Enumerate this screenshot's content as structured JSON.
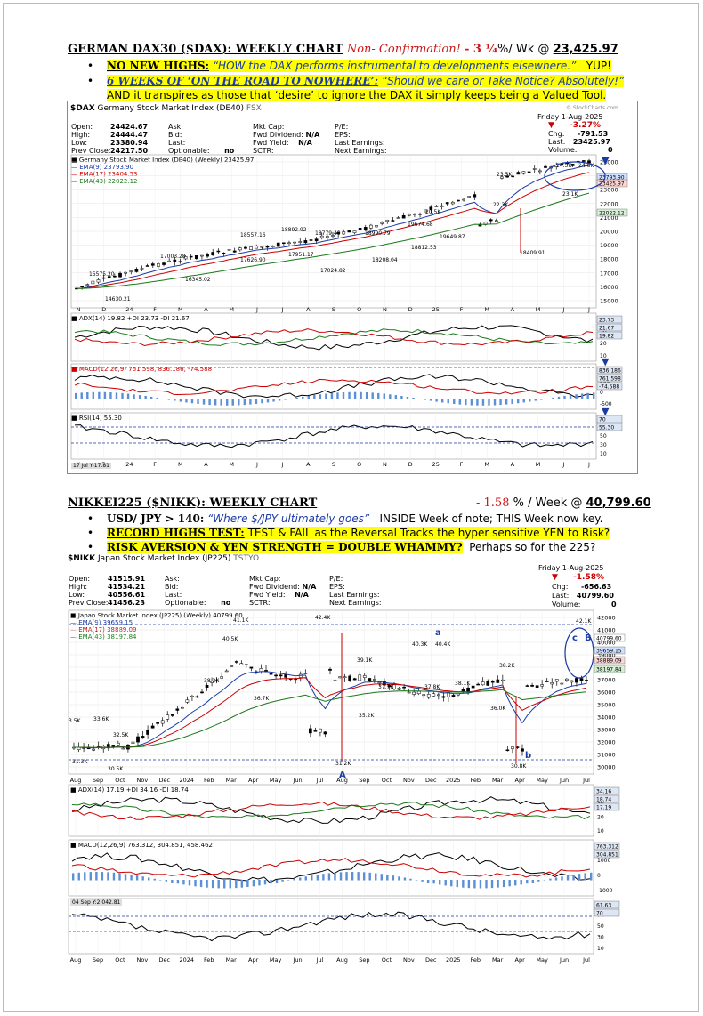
{
  "dax": {
    "heading": {
      "title": "GERMAN DAX30 ($DAX): WEEKLY CHART",
      "nonconf": "Non- Confirmation!",
      "pct": "- 3 ¼",
      "per_wk": "%/ Wk @",
      "price": "23,425.97"
    },
    "bullets": [
      {
        "lead": "NO NEW HIGHS:",
        "quote": "“HOW the DAX performs instrumental to developments elsewhere.”",
        "tail": "YUP!"
      },
      {
        "lead": "6 WEEKS OF ‘ON THE ROAD TO NOWHERE’:",
        "quote": "“Should we care or Take Notice? Absolutely!”",
        "tail": ""
      }
    ],
    "note": "AND it transpires as those that ‘desire’ to ignore the DAX it simply keeps being a Valued Tool.",
    "chart": {
      "symbol": "$DAX",
      "name": "Germany Stock Market Index (DE40)",
      "exchange": "FSX",
      "watermark": "© StockCharts.com",
      "date": "Friday  1-Aug-2025",
      "change_pct": "-3.27%",
      "chg_label": "Chg:",
      "chg": "-791.53",
      "last_label": "Last:",
      "last": "23425.97",
      "vol_label": "Volume:",
      "vol": "0",
      "open_label": "Open:",
      "open": "24424.67",
      "high_label": "High:",
      "high": "24444.47",
      "low_label": "Low:",
      "low": "23380.94",
      "prev_label": "Prev Close:",
      "prev": "24217.50",
      "ask": "Ask:",
      "bid": "Bid:",
      "lastf": "Last:",
      "optionable": "Optionable:",
      "optionable_v": "no",
      "mktcap": "Mkt Cap:",
      "fwddiv": "Fwd Dividend:",
      "fwddiv_v": "N/A",
      "fwdyield": "Fwd Yield:",
      "fwdyield_v": "N/A",
      "sctr": "SCTR:",
      "pe": "P/E:",
      "eps": "EPS:",
      "lastearn": "Last Earnings:",
      "nextearn": "Next Earnings:",
      "legend_main": "Germany Stock Market Index (DE40) (Weekly) 23425.97",
      "ema9": "EMA(9) 23793.90",
      "ema17": "EMA(17) 23404.53",
      "ema43": "EMA(43) 22022.12",
      "adx": "ADX(14) 19.82 +DI 23.73 -DI 21.67",
      "macd": "MACD(12,26,9) 761.598, 836.186, -74.588",
      "rsi": "RSI(14) 55.30",
      "footer": "17 Jul Y-17.81",
      "price_ticks": [
        "25000",
        "24000",
        "23000",
        "22000",
        "21000",
        "20000",
        "19000",
        "18000",
        "17000",
        "16000",
        "15000"
      ],
      "price_labels": [
        "15575.20",
        "14630.21",
        "17003.28",
        "16345.02",
        "18557.16",
        "17626.90",
        "18892.92",
        "17951.17",
        "18779.40",
        "17024.82",
        "18990.79",
        "18208.04",
        "19674.68",
        "18812.53",
        "20.5K",
        "19649.87",
        "23.5K",
        "22.3K",
        "18409.91",
        "24.5K",
        "24.6K",
        "23.1K"
      ],
      "right_values": [
        "23793.90",
        "23425.97",
        "22022.12"
      ],
      "months": [
        "N",
        "D",
        "24",
        "F",
        "M",
        "A",
        "M",
        "J",
        "J",
        "A",
        "S",
        "O",
        "N",
        "D",
        "25",
        "F",
        "M",
        "A",
        "M",
        "J",
        "J"
      ],
      "adx_ticks": [
        "40",
        "30",
        "20",
        "10"
      ],
      "macd_ticks": [
        "1000",
        "500",
        "0",
        "-500"
      ],
      "rsi_ticks": [
        "90",
        "70",
        "50",
        "30",
        "10"
      ],
      "adx_vals": [
        "23.73",
        "21.67",
        "19.82"
      ],
      "macd_vals": [
        "836.186",
        "761.598",
        "-74.588"
      ],
      "rsi_vals": [
        "70",
        "55.30"
      ]
    }
  },
  "nikk": {
    "heading": {
      "title": "NIKKEI225 ($NIKK): WEEKLY CHART",
      "pct": "- 1.58",
      "per_wk": "% / Week @",
      "price": "40,799.60"
    },
    "bullets": [
      {
        "lead": "USD/ JPY > 140:",
        "quote": "“Where $/JPY ultimately goes”",
        "tail": "INSIDE Week of note; THIS Week now key."
      },
      {
        "lead": "RECORD HIGHS TEST:",
        "quote": "",
        "tail": "TEST & FAIL as the Reversal Tracks the hyper sensitive YEN to Risk?"
      },
      {
        "lead": "RISK AVERSION & YEN STRENGTH = DOUBLE WHAMMY?",
        "quote": "",
        "tail": "Perhaps so for the 225?"
      }
    ],
    "chart": {
      "symbol": "$NIKK",
      "name": "Japan Stock Market Index (JP225)",
      "exchange": "TSTYO",
      "watermark": "© StockCharts.com",
      "date": "Friday  1-Aug-2025",
      "change_pct": "-1.58%",
      "chg_label": "Chg:",
      "chg": "-656.63",
      "last_label": "Last:",
      "last": "40799.60",
      "vol_label": "Volume:",
      "vol": "0",
      "open_label": "Open:",
      "open": "41515.91",
      "high_label": "High:",
      "high": "41534.21",
      "low_label": "Low:",
      "low": "40556.61",
      "prev_label": "Prev Close:",
      "prev": "41456.23",
      "ask": "Ask:",
      "bid": "Bid:",
      "lastf": "Last:",
      "optionable": "Optionable:",
      "optionable_v": "no",
      "mktcap": "Mkt Cap:",
      "fwddiv": "Fwd Dividend:",
      "fwddiv_v": "N/A",
      "fwdyield": "Fwd Yield:",
      "fwdyield_v": "N/A",
      "sctr": "SCTR:",
      "pe": "P/E:",
      "eps": "EPS:",
      "lastearn": "Last Earnings:",
      "nextearn": "Next Earnings:",
      "legend_main": "Japan Stock Market Index (JP225) (Weekly) 40799.60",
      "ema9": "EMA(9) 39659.15",
      "ema17": "EMA(17) 38889.09",
      "ema43": "EMA(43) 38197.84",
      "adx": "ADX(14) 17.19 +DI 34.16 -DI 18.74",
      "macd": "MACD(12,26,9) 763.312, 304.851, 458.462",
      "rsi_footer": "04 Sep Y:2,042.81",
      "price_ticks": [
        "42000",
        "41000",
        "40000",
        "39000",
        "38000",
        "37000",
        "36000",
        "35000",
        "34000",
        "33000",
        "32000",
        "31000",
        "30000"
      ],
      "price_labels": [
        "3.5K",
        "33.6K",
        "32.5K",
        "31.3K",
        "30.5K",
        "40.5K",
        "41.1K",
        "38.3K",
        "36.7K",
        "42.4K",
        "31.2K",
        "39.1K",
        "37.7K",
        "35.2K",
        "40.3K",
        "37.8K",
        "40.4K",
        "38.1K",
        "38.2K",
        "36.0K",
        "30.8K",
        "42.1K"
      ],
      "markers": [
        "A",
        "a",
        "b",
        "c",
        "B"
      ],
      "right_values": [
        "40799.60",
        "39659.15",
        "38889.09",
        "38197.84"
      ],
      "months": [
        "Aug",
        "Sep",
        "Oct",
        "Nov",
        "Dec",
        "2024",
        "Feb",
        "Mar",
        "Apr",
        "May",
        "Jun",
        "Jul",
        "Aug",
        "Sep",
        "Oct",
        "Nov",
        "Dec",
        "2025",
        "Feb",
        "Mar",
        "Apr",
        "May",
        "Jun",
        "Jul"
      ],
      "adx_ticks": [
        "40",
        "30",
        "20",
        "10"
      ],
      "macd_ticks": [
        "2000",
        "1000",
        "0",
        "-1000"
      ],
      "rsi_ticks": [
        "90",
        "70",
        "50",
        "30",
        "10"
      ],
      "adx_vals": [
        "34.16",
        "18.74",
        "17.19"
      ],
      "macd_vals": [
        "763.312",
        "304.851"
      ],
      "rsi_vals": [
        "61.63",
        "70"
      ]
    }
  }
}
